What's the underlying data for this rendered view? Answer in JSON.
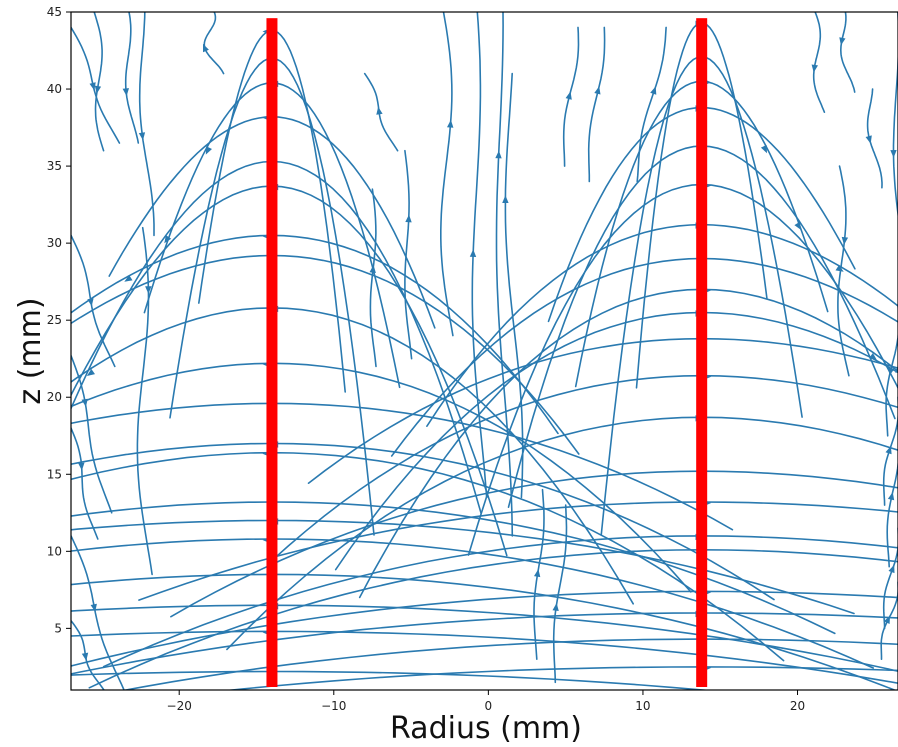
{
  "chart_data": {
    "type": "streamplot",
    "xlabel": "Radius (mm)",
    "ylabel": "z (mm)",
    "xlim": [
      -27,
      26.5
    ],
    "ylim": [
      1,
      45
    ],
    "xticks": [
      -20,
      -10,
      0,
      10,
      20
    ],
    "yticks": [
      5,
      10,
      15,
      20,
      25,
      30,
      35,
      40,
      45
    ],
    "grid": false,
    "stream_color": "#2a7ab0",
    "marker_color": "#ff0000",
    "markers": [
      {
        "type": "vertical_bar",
        "x": -14,
        "y_range": [
          1,
          44.6
        ]
      },
      {
        "type": "vertical_bar",
        "x": 13.8,
        "y_range": [
          1,
          44.6
        ]
      }
    ],
    "streamline_families": [
      {
        "kind": "arc",
        "center_x": -14,
        "apex_z": [
          43.8,
          42.0,
          40.4,
          38.2,
          35.3,
          33.7,
          30.5,
          29.2,
          25.8,
          22.2,
          19.6,
          17.0,
          16.4,
          13.2,
          12.0,
          10.8,
          8.5,
          6.5,
          4.8,
          2.2
        ],
        "arrow_direction": "toward_center"
      },
      {
        "kind": "arc",
        "center_x": 13.8,
        "apex_z": [
          44.3,
          42.1,
          40.5,
          38.8,
          36.3,
          33.8,
          31.2,
          29.0,
          27.0,
          25.5,
          23.8,
          21.4,
          18.7,
          15.2,
          13.2,
          11.0,
          10.1,
          7.4,
          6.0,
          4.3,
          2.5
        ],
        "arrow_direction": "away_from_center"
      }
    ]
  }
}
